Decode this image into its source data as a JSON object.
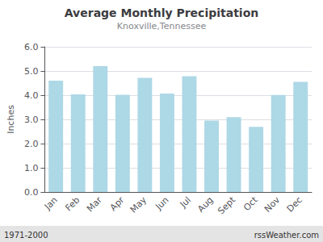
{
  "chart_data": {
    "type": "bar",
    "title": "Average Monthly Precipitation",
    "subtitle": "Knoxville,Tennessee",
    "ylabel": "Inches",
    "annotations": [
      "1971-2000",
      "rssWeather.com"
    ],
    "categories": [
      "Jan",
      "Feb",
      "Mar",
      "Apr",
      "May",
      "Jun",
      "Jul",
      "Aug",
      "Sept",
      "Oct",
      "Nov",
      "Dec"
    ],
    "values": [
      4.6,
      4.03,
      5.2,
      4.02,
      4.72,
      4.07,
      4.78,
      2.95,
      3.09,
      2.69,
      4.01,
      4.55
    ],
    "color": "#add8e6",
    "ylim": [
      0.0,
      6.0
    ],
    "yticks": [
      {
        "value": 0,
        "label": "0.0"
      },
      {
        "value": 1,
        "label": "1.0"
      },
      {
        "value": 2,
        "label": "2.0"
      },
      {
        "value": 3,
        "label": "3.0"
      },
      {
        "value": 4,
        "label": "4.0"
      },
      {
        "value": 5,
        "label": "5.0"
      },
      {
        "value": 6,
        "label": "6.0"
      }
    ],
    "grid": true
  }
}
